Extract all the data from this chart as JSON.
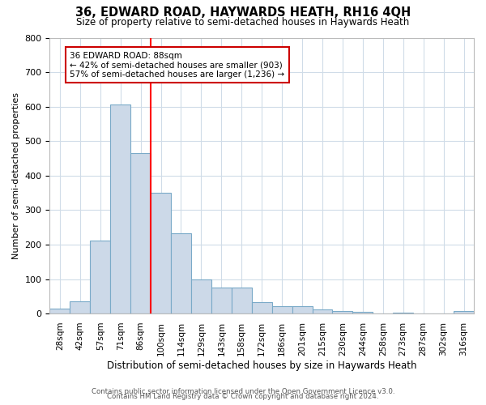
{
  "title": "36, EDWARD ROAD, HAYWARDS HEATH, RH16 4QH",
  "subtitle": "Size of property relative to semi-detached houses in Haywards Heath",
  "xlabel": "Distribution of semi-detached houses by size in Haywards Heath",
  "ylabel": "Number of semi-detached properties",
  "footer1": "Contains HM Land Registry data © Crown copyright and database right 2024.",
  "footer2": "Contains public sector information licensed under the Open Government Licence v3.0.",
  "categories": [
    "28sqm",
    "42sqm",
    "57sqm",
    "71sqm",
    "86sqm",
    "100sqm",
    "114sqm",
    "129sqm",
    "143sqm",
    "158sqm",
    "172sqm",
    "186sqm",
    "201sqm",
    "215sqm",
    "230sqm",
    "244sqm",
    "258sqm",
    "273sqm",
    "287sqm",
    "302sqm",
    "316sqm"
  ],
  "values": [
    14,
    35,
    212,
    607,
    465,
    350,
    233,
    100,
    75,
    75,
    33,
    22,
    22,
    11,
    8,
    5,
    0,
    2,
    0,
    0,
    8
  ],
  "bar_color": "#ccd9e8",
  "bar_edge_color": "#7aaac8",
  "red_line_index": 4,
  "annotation_title": "36 EDWARD ROAD: 88sqm",
  "annotation_line1": "← 42% of semi-detached houses are smaller (903)",
  "annotation_line2": "57% of semi-detached houses are larger (1,236) →",
  "annotation_box_color": "#cc0000",
  "ylim": [
    0,
    800
  ],
  "yticks": [
    0,
    100,
    200,
    300,
    400,
    500,
    600,
    700,
    800
  ]
}
